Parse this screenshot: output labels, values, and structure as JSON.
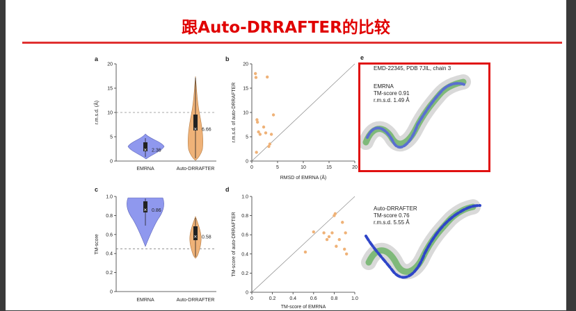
{
  "slide": {
    "title": "跟Auto-DRRAFTER的比较"
  },
  "panels": {
    "a": {
      "letter": "a",
      "ylabel": "r.m.s.d. (Å)",
      "yticks": [
        "0",
        "5",
        "10",
        "15",
        "20"
      ]
    },
    "b": {
      "letter": "b",
      "xlabel": "RMSD of EMRNA (Å)",
      "ylabel": "r.m.s.d. of auto-DRRAFTER",
      "xticks": [
        "0",
        "5",
        "10",
        "15",
        "20"
      ],
      "yticks": [
        "0",
        "5",
        "10",
        "15",
        "20"
      ]
    },
    "c": {
      "letter": "c",
      "ylabel": "TM-score",
      "yticks": [
        "0",
        "0.2",
        "0.4",
        "0.6",
        "0.8",
        "1.0"
      ]
    },
    "d": {
      "letter": "d",
      "xlabel": "TM-score of EMRNA",
      "ylabel": "TM-score of auto-DRRAFTER",
      "xticks": [
        "0",
        "0.2",
        "0.4",
        "0.6",
        "0.8",
        "1.0"
      ],
      "yticks": [
        "0",
        "0.2",
        "0.4",
        "0.6",
        "0.8",
        "1.0"
      ]
    },
    "e": {
      "letter": "e",
      "header": "EMD-22345, PDB 7JIL, chain 3",
      "top_label": [
        "EMRNA",
        "TM-score 0.91",
        "r.m.s.d. 1.49 Å"
      ],
      "bottom_label": [
        "Auto-DRRAFTER",
        "TM-score 0.76",
        "r.m.s.d. 5.55 Å"
      ]
    }
  },
  "colors": {
    "emrna": "#8f98ee",
    "auto": "#efb278",
    "title": "#e00000"
  },
  "chart_data": [
    {
      "type": "violin",
      "panel": "a",
      "ylim": [
        0,
        20
      ],
      "categories": [
        "EMRNA",
        "Auto-DRRAFTER"
      ],
      "means": [
        2.36,
        6.66
      ],
      "reference_line": 10
    },
    {
      "type": "scatter",
      "panel": "b",
      "xlim": [
        0,
        20
      ],
      "ylim": [
        0,
        20
      ],
      "x": [
        0.7,
        0.8,
        1.0,
        1.1,
        1.3,
        1.6,
        2.3,
        2.7,
        3.0,
        3.3,
        3.5,
        3.8,
        4.2,
        0.9
      ],
      "y": [
        18.0,
        17.2,
        8.5,
        8.0,
        6.0,
        5.5,
        7.0,
        5.8,
        17.3,
        3.0,
        3.5,
        5.5,
        9.5,
        1.8
      ],
      "diagonal": true
    },
    {
      "type": "violin",
      "panel": "c",
      "ylim": [
        0,
        1.0
      ],
      "categories": [
        "EMRNA",
        "Auto-DRRAFTER"
      ],
      "means": [
        0.86,
        0.58
      ],
      "reference_line": 0.45
    },
    {
      "type": "scatter",
      "panel": "d",
      "xlim": [
        0,
        1.0
      ],
      "ylim": [
        0,
        1.0
      ],
      "x": [
        0.52,
        0.6,
        0.7,
        0.73,
        0.75,
        0.78,
        0.8,
        0.81,
        0.82,
        0.85,
        0.88,
        0.9,
        0.91,
        0.92
      ],
      "y": [
        0.42,
        0.63,
        0.62,
        0.55,
        0.58,
        0.62,
        0.8,
        0.82,
        0.48,
        0.55,
        0.73,
        0.45,
        0.62,
        0.4
      ],
      "diagonal": true
    }
  ]
}
